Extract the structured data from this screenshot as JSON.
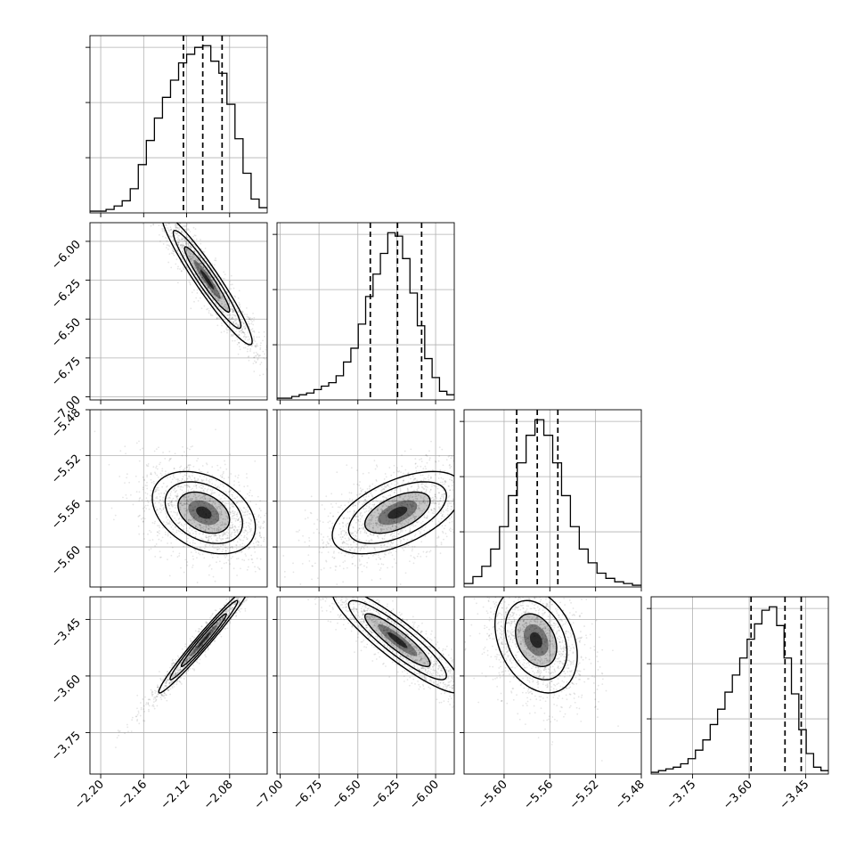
{
  "chart_data": {
    "type": "corner",
    "title": "",
    "grid": true,
    "n_params": 4,
    "params": [
      {
        "range": [
          -2.21,
          -2.045
        ],
        "ticks": [
          -2.2,
          -2.16,
          -2.12,
          -2.08
        ],
        "tick_labels": [
          "−2.20",
          "−2.16",
          "−2.12",
          "−2.08"
        ]
      },
      {
        "range": [
          -7.02,
          -5.88
        ],
        "ticks": [
          -7.0,
          -6.75,
          -6.5,
          -6.25,
          -6.0
        ],
        "tick_labels": [
          "−7.00",
          "−6.75",
          "−6.50",
          "−6.25",
          "−6.00"
        ]
      },
      {
        "range": [
          -5.635,
          -5.48
        ],
        "ticks": [
          -5.6,
          -5.56,
          -5.52,
          -5.48
        ],
        "tick_labels": [
          "−5.60",
          "−5.56",
          "−5.52",
          "−5.48"
        ]
      },
      {
        "range": [
          -3.86,
          -3.39
        ],
        "ticks": [
          -3.75,
          -3.6,
          -3.45
        ],
        "tick_labels": [
          "−3.75",
          "−3.60",
          "−3.45"
        ]
      }
    ],
    "marginals": [
      {
        "bin_edges": [
          -2.21,
          -2.045
        ],
        "counts": [
          1,
          1,
          2,
          4,
          7,
          14,
          28,
          42,
          55,
          67,
          77,
          87,
          92,
          96,
          97,
          88,
          81,
          63,
          43,
          23,
          8,
          3
        ],
        "quantiles": [
          -2.123,
          -2.105,
          -2.087
        ]
      },
      {
        "bin_edges": [
          -7.02,
          -5.88
        ],
        "counts": [
          1,
          1,
          2,
          3,
          4,
          6,
          8,
          10,
          14,
          22,
          30,
          44,
          60,
          73,
          85,
          97,
          95,
          82,
          62,
          43,
          24,
          13,
          5,
          3
        ],
        "quantiles": [
          -6.42,
          -6.245,
          -6.09
        ]
      },
      {
        "bin_edges": [
          -5.635,
          -5.48
        ],
        "counts": [
          2,
          6,
          12,
          22,
          35,
          53,
          72,
          88,
          97,
          88,
          72,
          53,
          35,
          22,
          14,
          8,
          5,
          3,
          2,
          1
        ],
        "quantiles": [
          -5.589,
          -5.571,
          -5.553
        ]
      },
      {
        "bin_edges": [
          -3.86,
          -3.39
        ],
        "counts": [
          1,
          2,
          3,
          4,
          6,
          9,
          14,
          20,
          29,
          38,
          48,
          58,
          68,
          79,
          88,
          96,
          98,
          87,
          68,
          47,
          26,
          12,
          4,
          2
        ],
        "quantiles": [
          -3.595,
          -3.505,
          -3.462
        ]
      }
    ],
    "pairs": [
      {
        "row": 1,
        "col": 0,
        "mean": [
          -2.101,
          -6.245
        ],
        "sd": [
          0.021,
          0.21
        ],
        "corr": -0.95
      },
      {
        "row": 2,
        "col": 0,
        "mean": [
          -2.104,
          -5.57
        ],
        "sd": [
          0.024,
          0.018
        ],
        "corr": -0.35
      },
      {
        "row": 2,
        "col": 1,
        "mean": [
          -6.245,
          -5.57
        ],
        "sd": [
          0.21,
          0.018
        ],
        "corr": 0.55
      },
      {
        "row": 3,
        "col": 0,
        "mean": [
          -2.104,
          -3.505
        ],
        "sd": [
          0.021,
          0.07
        ],
        "corr": 0.98
      },
      {
        "row": 3,
        "col": 1,
        "mean": [
          -6.245,
          -3.505
        ],
        "sd": [
          0.21,
          0.07
        ],
        "corr": -0.9
      },
      {
        "row": 3,
        "col": 2,
        "mean": [
          -5.572,
          -3.505
        ],
        "sd": [
          0.018,
          0.07
        ],
        "corr": -0.3
      }
    ],
    "contour_levels": [
      1.0,
      1.5,
      2.0
    ],
    "colors": {
      "line": "#000000",
      "grid": "#b0b0b0",
      "scatter": "#000000"
    }
  }
}
